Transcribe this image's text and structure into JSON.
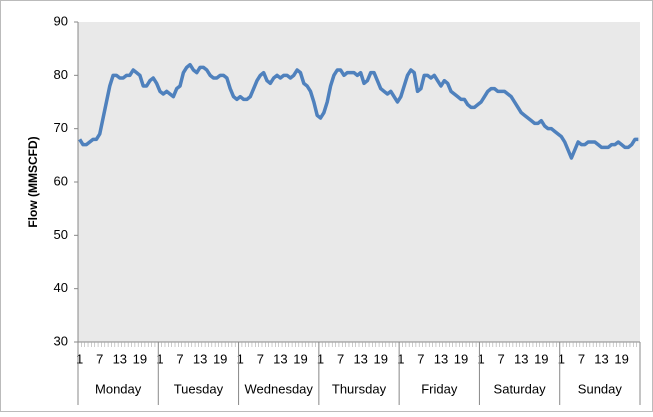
{
  "chart_data": {
    "type": "line",
    "y_label": "Flow (MMSCFD)",
    "groups": [
      "Monday",
      "Tuesday",
      "Wednesday",
      "Thursday",
      "Friday",
      "Saturday",
      "Sunday"
    ],
    "categories": [
      "1",
      null,
      null,
      null,
      null,
      null,
      "7",
      null,
      null,
      null,
      null,
      null,
      "13",
      null,
      null,
      null,
      null,
      null,
      "19",
      null,
      null,
      null,
      null,
      null,
      "1",
      null,
      null,
      null,
      null,
      null,
      "7",
      null,
      null,
      null,
      null,
      null,
      "13",
      null,
      null,
      null,
      null,
      null,
      "19",
      null,
      null,
      null,
      null,
      null,
      "1",
      null,
      null,
      null,
      null,
      null,
      "7",
      null,
      null,
      null,
      null,
      null,
      "13",
      null,
      null,
      null,
      null,
      null,
      "19",
      null,
      null,
      null,
      null,
      null,
      "1",
      null,
      null,
      null,
      null,
      null,
      "7",
      null,
      null,
      null,
      null,
      null,
      "13",
      null,
      null,
      null,
      null,
      null,
      "19",
      null,
      null,
      null,
      null,
      null,
      "1",
      null,
      null,
      null,
      null,
      null,
      "7",
      null,
      null,
      null,
      null,
      null,
      "13",
      null,
      null,
      null,
      null,
      null,
      "19",
      null,
      null,
      null,
      null,
      null,
      "1",
      null,
      null,
      null,
      null,
      null,
      "7",
      null,
      null,
      null,
      null,
      null,
      "13",
      null,
      null,
      null,
      null,
      null,
      "19",
      null,
      null,
      null,
      null,
      null,
      "1",
      null,
      null,
      null,
      null,
      null,
      "7",
      null,
      null,
      null,
      null,
      null,
      "13",
      null,
      null,
      null,
      null,
      null,
      "19",
      null,
      null,
      null,
      null,
      null
    ],
    "values": [
      68,
      67,
      67,
      67.5,
      68,
      68,
      69,
      72,
      75,
      78,
      80,
      80,
      79.5,
      79.5,
      80,
      80,
      81,
      80.5,
      80,
      78,
      78,
      79,
      79.5,
      78.5,
      77,
      76.5,
      77,
      76.5,
      76,
      77.5,
      78,
      80.5,
      81.5,
      82,
      81,
      80.5,
      81.5,
      81.5,
      81,
      80,
      79.5,
      79.5,
      80,
      80,
      79.5,
      77.5,
      76,
      75.5,
      76,
      75.5,
      75.5,
      76,
      77.5,
      79,
      80,
      80.5,
      79,
      78.5,
      79.5,
      80,
      79.5,
      80,
      80,
      79.5,
      80,
      81,
      80.5,
      78.5,
      78,
      77,
      75,
      72.5,
      72,
      73,
      75,
      78,
      80,
      81,
      81,
      80,
      80.5,
      80.5,
      80.5,
      80,
      80.5,
      78.5,
      79,
      80.5,
      80.5,
      79,
      77.5,
      77,
      76.5,
      77,
      76,
      75,
      76,
      78,
      80,
      81,
      80.5,
      77,
      77.5,
      80,
      80,
      79.5,
      80,
      79,
      78,
      79,
      78.5,
      77,
      76.5,
      76,
      75.5,
      75.5,
      74.5,
      74,
      74,
      74.5,
      75,
      76,
      77,
      77.5,
      77.5,
      77,
      77,
      77,
      76.5,
      76,
      75,
      74,
      73,
      72.5,
      72,
      71.5,
      71,
      71,
      71.5,
      70.5,
      70,
      70,
      69.5,
      69,
      68.5,
      67.5,
      66,
      64.5,
      66,
      67.5,
      67,
      67,
      67.5,
      67.5,
      67.5,
      67,
      66.5,
      66.5,
      66.5,
      67,
      67,
      67.5,
      67,
      66.5,
      66.5,
      67,
      68,
      68
    ],
    "color": "#4f81bd",
    "ylim": [
      30,
      90
    ],
    "yticks": [
      30,
      40,
      50,
      60,
      70,
      80,
      90
    ]
  }
}
